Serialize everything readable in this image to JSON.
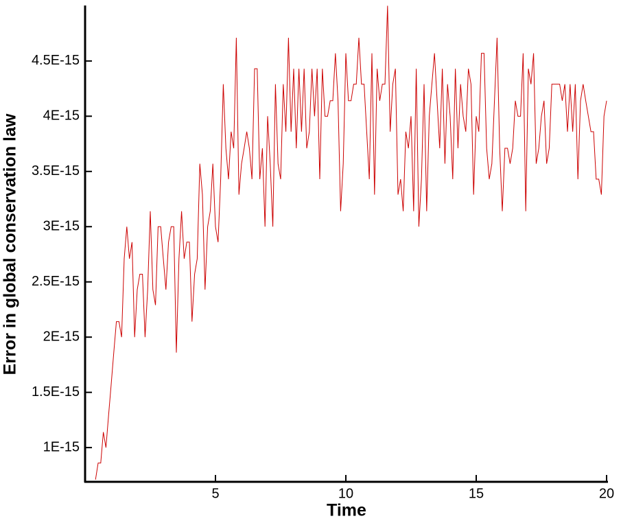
{
  "chart_data": {
    "type": "line",
    "x_label": "Time",
    "y_label": "Error in global conservation law",
    "color": "#cc0000",
    "xlim": [
      0,
      20
    ],
    "xticks": [
      5,
      10,
      15,
      20
    ],
    "ylim": [
      6.9e-16,
      4.99e-15
    ],
    "yticks": [
      {
        "value": 1e-15,
        "label": "1E-15"
      },
      {
        "value": 1.5e-15,
        "label": "1.5E-15"
      },
      {
        "value": 2e-15,
        "label": "2E-15"
      },
      {
        "value": 2.5e-15,
        "label": "2.5E-15"
      },
      {
        "value": 3e-15,
        "label": "3E-15"
      },
      {
        "value": 3.5e-15,
        "label": "3.5E-15"
      },
      {
        "value": 4e-15,
        "label": "4E-15"
      },
      {
        "value": 4.5e-15,
        "label": "4.5E-15"
      }
    ],
    "x": [
      0.4,
      0.5,
      0.6,
      0.7,
      0.8,
      0.9,
      1.0,
      1.1,
      1.2,
      1.3,
      1.4,
      1.5,
      1.6,
      1.7,
      1.8,
      1.9,
      2.0,
      2.1,
      2.2,
      2.3,
      2.4,
      2.5,
      2.6,
      2.7,
      2.8,
      2.9,
      3.0,
      3.1,
      3.2,
      3.3,
      3.4,
      3.5,
      3.6,
      3.7,
      3.8,
      3.9,
      4.0,
      4.1,
      4.2,
      4.3,
      4.4,
      4.5,
      4.6,
      4.7,
      4.8,
      4.9,
      5.0,
      5.1,
      5.2,
      5.3,
      5.4,
      5.5,
      5.6,
      5.7,
      5.8,
      5.9,
      6.0,
      6.1,
      6.2,
      6.3,
      6.4,
      6.5,
      6.6,
      6.7,
      6.8,
      6.9,
      7.0,
      7.1,
      7.2,
      7.3,
      7.4,
      7.5,
      7.6,
      7.7,
      7.8,
      7.9,
      8.0,
      8.1,
      8.2,
      8.3,
      8.4,
      8.5,
      8.6,
      8.7,
      8.8,
      8.9,
      9.0,
      9.1,
      9.2,
      9.3,
      9.4,
      9.5,
      9.6,
      9.7,
      9.8,
      9.9,
      10.0,
      10.1,
      10.2,
      10.3,
      10.4,
      10.5,
      10.6,
      10.7,
      10.8,
      10.9,
      11.0,
      11.1,
      11.2,
      11.3,
      11.4,
      11.5,
      11.6,
      11.7,
      11.8,
      11.9,
      12.0,
      12.1,
      12.2,
      12.3,
      12.4,
      12.5,
      12.6,
      12.7,
      12.8,
      12.9,
      13.0,
      13.1,
      13.2,
      13.3,
      13.4,
      13.5,
      13.6,
      13.7,
      13.8,
      13.9,
      14.0,
      14.1,
      14.2,
      14.3,
      14.4,
      14.5,
      14.6,
      14.7,
      14.8,
      14.9,
      15.0,
      15.1,
      15.2,
      15.3,
      15.4,
      15.5,
      15.6,
      15.7,
      15.8,
      15.9,
      16.0,
      16.1,
      16.2,
      16.3,
      16.4,
      16.5,
      16.6,
      16.7,
      16.8,
      16.9,
      17.0,
      17.1,
      17.2,
      17.3,
      17.4,
      17.5,
      17.6,
      17.7,
      17.8,
      17.9,
      18.0,
      18.1,
      18.2,
      18.3,
      18.4,
      18.5,
      18.6,
      18.7,
      18.8,
      18.9,
      19.0,
      19.1,
      19.2,
      19.3,
      19.4,
      19.5,
      19.6,
      19.7,
      19.8,
      19.9,
      20.0
    ],
    "values": [
      7.1e-16,
      8.6e-16,
      8.6e-16,
      1.14e-15,
      1e-15,
      1.29e-15,
      1.57e-15,
      1.86e-15,
      2.14e-15,
      2.14e-15,
      2e-15,
      2.71e-15,
      3e-15,
      2.71e-15,
      2.86e-15,
      2e-15,
      2.43e-15,
      2.57e-15,
      2.57e-15,
      2e-15,
      2.43e-15,
      3.14e-15,
      2.43e-15,
      2.29e-15,
      3e-15,
      3e-15,
      2.71e-15,
      2.43e-15,
      2.86e-15,
      3e-15,
      3e-15,
      1.86e-15,
      2.71e-15,
      3.14e-15,
      2.71e-15,
      2.86e-15,
      2.86e-15,
      2.14e-15,
      2.57e-15,
      2.71e-15,
      3.57e-15,
      3.29e-15,
      2.43e-15,
      3e-15,
      3.14e-15,
      3.57e-15,
      3e-15,
      2.86e-15,
      3.43e-15,
      4.29e-15,
      3.71e-15,
      3.43e-15,
      3.86e-15,
      3.71e-15,
      4.71e-15,
      3.29e-15,
      3.57e-15,
      3.71e-15,
      3.86e-15,
      3.71e-15,
      3.43e-15,
      4.43e-15,
      4.43e-15,
      3.43e-15,
      3.71e-15,
      3e-15,
      4e-15,
      3.57e-15,
      3e-15,
      4.29e-15,
      3.57e-15,
      3.43e-15,
      4.29e-15,
      3.86e-15,
      4.71e-15,
      3.86e-15,
      4.43e-15,
      3.71e-15,
      4.43e-15,
      3.86e-15,
      4.43e-15,
      3.71e-15,
      3.86e-15,
      4.43e-15,
      4e-15,
      4.43e-15,
      3.43e-15,
      4.43e-15,
      4e-15,
      4e-15,
      4.14e-15,
      4.14e-15,
      4.57e-15,
      4.14e-15,
      3.14e-15,
      3.57e-15,
      4.57e-15,
      4.14e-15,
      4.14e-15,
      4.29e-15,
      4.29e-15,
      4.71e-15,
      4.29e-15,
      4.29e-15,
      3.86e-15,
      3.43e-15,
      4.57e-15,
      3.29e-15,
      4.43e-15,
      4.14e-15,
      4.29e-15,
      4.29e-15,
      5e-15,
      3.86e-15,
      4.29e-15,
      4.43e-15,
      3.29e-15,
      3.43e-15,
      3.14e-15,
      3.86e-15,
      3.71e-15,
      4e-15,
      3.14e-15,
      4.43e-15,
      3e-15,
      3.43e-15,
      4.29e-15,
      3.14e-15,
      4e-15,
      4.29e-15,
      4.57e-15,
      4.14e-15,
      3.71e-15,
      4.43e-15,
      3.57e-15,
      4.29e-15,
      4e-15,
      3.43e-15,
      4.43e-15,
      3.71e-15,
      4.29e-15,
      4e-15,
      3.86e-15,
      4.43e-15,
      4.29e-15,
      3.29e-15,
      4e-15,
      3.86e-15,
      4.57e-15,
      4.57e-15,
      3.71e-15,
      3.43e-15,
      3.57e-15,
      4.14e-15,
      4.71e-15,
      3.71e-15,
      3.14e-15,
      3.71e-15,
      3.71e-15,
      3.57e-15,
      3.71e-15,
      4.14e-15,
      4e-15,
      4e-15,
      4.57e-15,
      3.14e-15,
      4.43e-15,
      4.29e-15,
      4.57e-15,
      3.57e-15,
      3.71e-15,
      4e-15,
      4.14e-15,
      3.57e-15,
      3.71e-15,
      4.29e-15,
      4.29e-15,
      4.29e-15,
      4.29e-15,
      4.14e-15,
      4.29e-15,
      3.86e-15,
      4.29e-15,
      3.86e-15,
      4.29e-15,
      3.43e-15,
      4.14e-15,
      4.29e-15,
      4.14e-15,
      4e-15,
      3.86e-15,
      3.86e-15,
      3.43e-15,
      3.43e-15,
      3.29e-15,
      4e-15,
      4.14e-15
    ]
  }
}
